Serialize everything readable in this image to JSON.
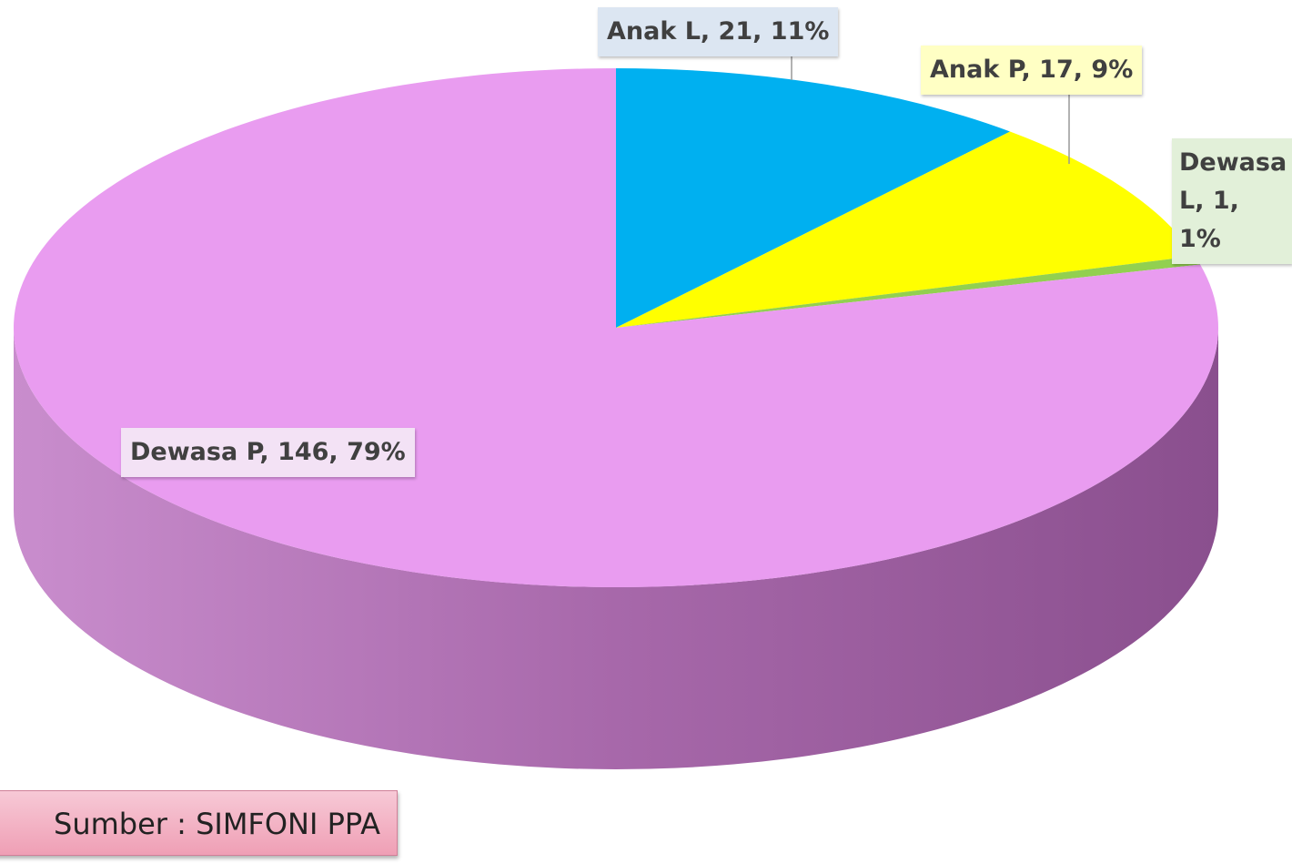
{
  "chart_data": {
    "type": "pie",
    "categories": [
      "Anak L",
      "Anak P",
      "Dewasa L",
      "Dewasa P"
    ],
    "values": [
      21,
      17,
      1,
      146
    ],
    "value_labels": [
      "Anak L, 21, 11%",
      "Anak P, 17, 9%",
      "Dewasa L, 1, 1%",
      "Dewasa P, 146, 79%"
    ],
    "colors": [
      "#00b0f0",
      "#ffff00",
      "#92d050",
      "#e99cf0"
    ],
    "source": "Sumber : SIMFONI PPA"
  }
}
